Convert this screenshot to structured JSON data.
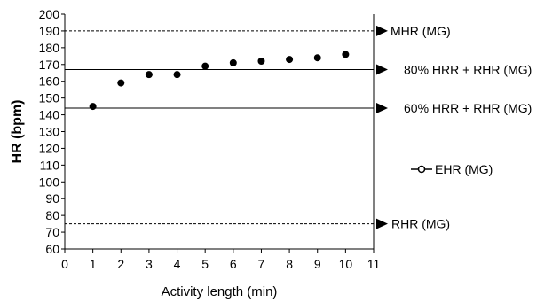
{
  "chart_data": {
    "type": "scatter",
    "xlabel": "Activity length (min)",
    "ylabel": "HR (bpm)",
    "xlim": [
      0,
      11
    ],
    "ylim": [
      60,
      200
    ],
    "x_ticks": [
      0,
      1,
      2,
      3,
      4,
      5,
      6,
      7,
      8,
      9,
      10,
      11
    ],
    "y_ticks": [
      60,
      70,
      80,
      90,
      100,
      110,
      120,
      130,
      140,
      150,
      160,
      170,
      180,
      190,
      200
    ],
    "grid": false,
    "series": [
      {
        "name": "EHR (MG)",
        "x": [
          1,
          2,
          3,
          4,
          5,
          6,
          7,
          8,
          9,
          10
        ],
        "y": [
          145,
          159,
          164,
          164,
          169,
          171,
          172,
          173,
          174,
          176
        ],
        "color": "#000000"
      }
    ],
    "reference_lines": [
      {
        "label": "MHR (MG)",
        "value": 190,
        "style": "dashed"
      },
      {
        "label": "80% HRR + RHR (MG)",
        "value": 167,
        "style": "solid"
      },
      {
        "label": "60% HRR + RHR (MG)",
        "value": 144,
        "style": "solid"
      },
      {
        "label": "RHR (MG)",
        "value": 75,
        "style": "dashed"
      }
    ],
    "legend": {
      "placement": "right",
      "entries": [
        "EHR (MG)"
      ]
    }
  }
}
